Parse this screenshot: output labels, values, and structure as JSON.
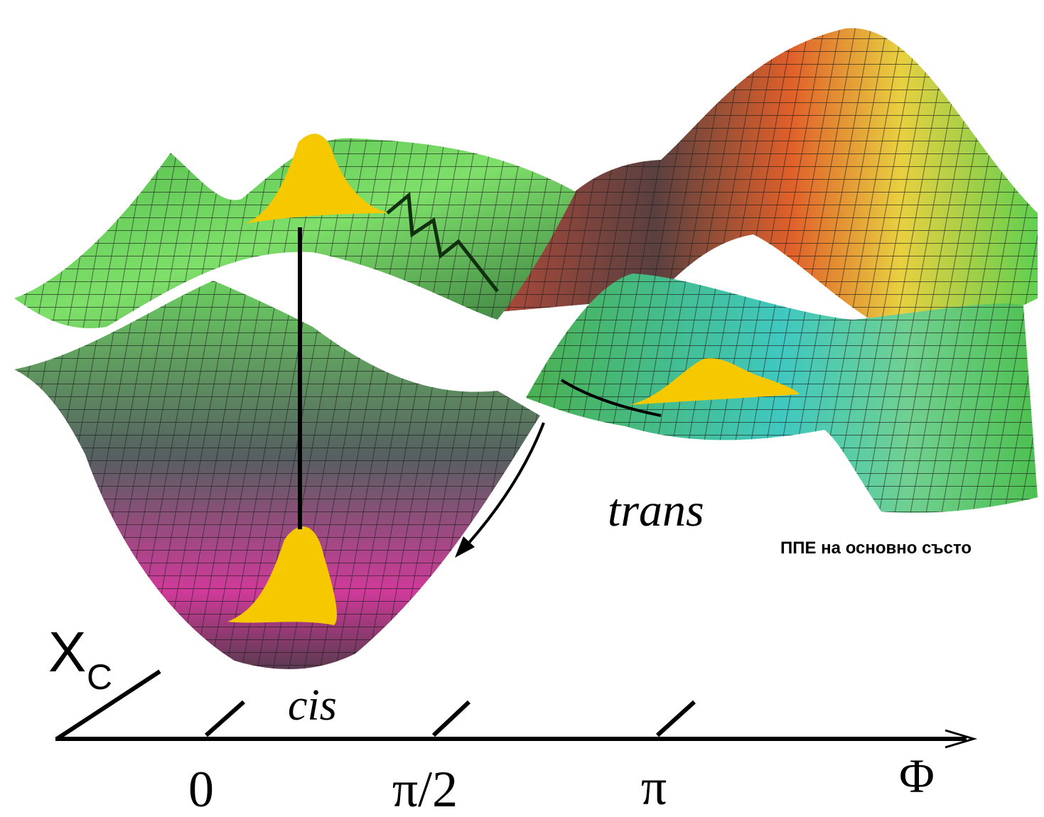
{
  "labels": {
    "trans": "trans",
    "cis": "cis",
    "caption": "ППЕ на основно състо"
  },
  "axis": {
    "x_label": "Φ",
    "ticks": [
      "0",
      "π/2",
      "π"
    ],
    "y_label": "X",
    "y_label_subscript": "C"
  }
}
